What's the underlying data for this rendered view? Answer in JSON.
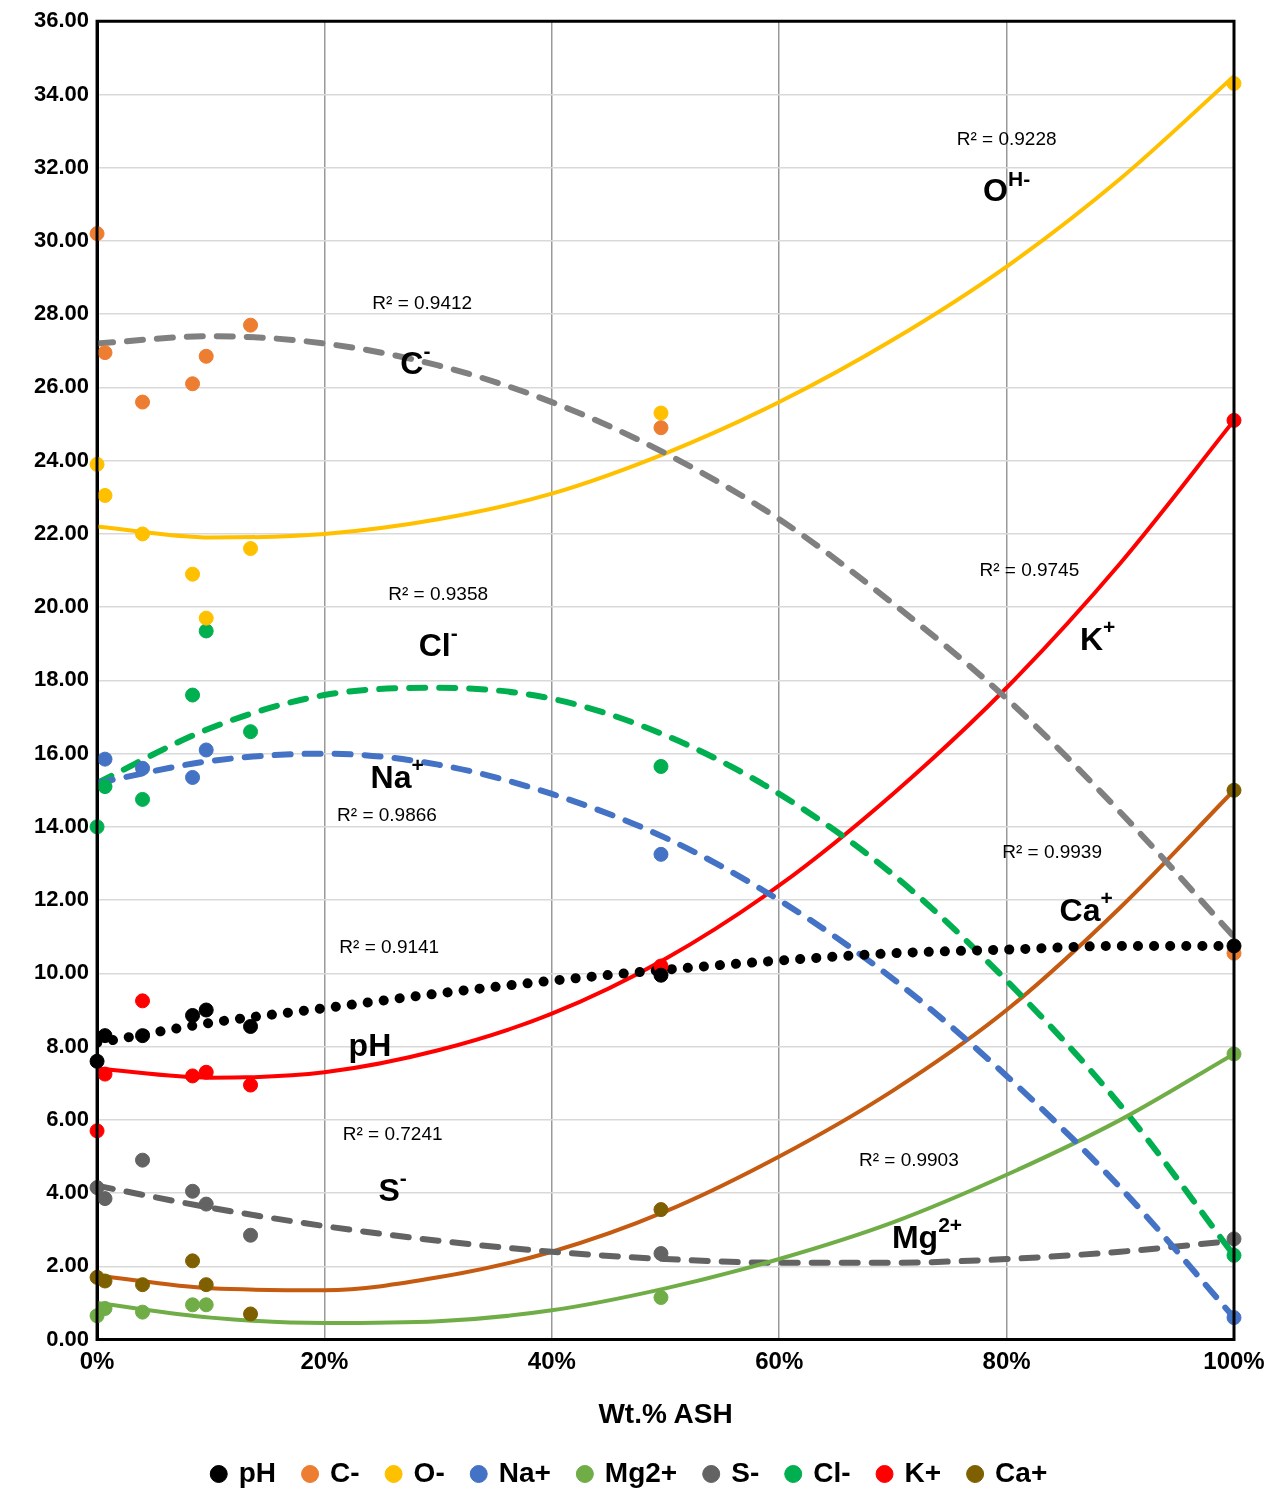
{
  "chart_data": {
    "type": "scatter",
    "xlabel": "Wt.% ASH",
    "marker": "circle",
    "grid": true,
    "legend": "bottom",
    "xlim": [
      0,
      100
    ],
    "xticks": [
      {
        "value": 0,
        "label": "0%"
      },
      {
        "value": 20,
        "label": "20%"
      },
      {
        "value": 40,
        "label": "40%"
      },
      {
        "value": 60,
        "label": "60%"
      },
      {
        "value": 80,
        "label": "80%"
      },
      {
        "value": 100,
        "label": "100%"
      }
    ],
    "ylim": [
      0,
      36
    ],
    "yticks": [
      {
        "value": 0,
        "label": "0.00"
      },
      {
        "value": 2,
        "label": "2.00"
      },
      {
        "value": 4,
        "label": "4.00"
      },
      {
        "value": 6,
        "label": "6.00"
      },
      {
        "value": 8,
        "label": "8.00"
      },
      {
        "value": 10,
        "label": "10.00"
      },
      {
        "value": 12,
        "label": "12.00"
      },
      {
        "value": 14,
        "label": "14.00"
      },
      {
        "value": 16,
        "label": "16.00"
      },
      {
        "value": 18,
        "label": "18.00"
      },
      {
        "value": 20,
        "label": "20.00"
      },
      {
        "value": 22,
        "label": "22.00"
      },
      {
        "value": 24,
        "label": "24.00"
      },
      {
        "value": 26,
        "label": "26.00"
      },
      {
        "value": 28,
        "label": "28.00"
      },
      {
        "value": 30,
        "label": "30.00"
      },
      {
        "value": 32,
        "label": "32.00"
      },
      {
        "value": 34,
        "label": "34.00"
      },
      {
        "value": 36,
        "label": "36.00"
      }
    ],
    "x": [
      0,
      0.7,
      4,
      8.4,
      9.6,
      13.5,
      49.6,
      100
    ],
    "series": [
      {
        "name": "pH",
        "color": "#000000",
        "values": [
          7.6,
          8.3,
          8.3,
          8.85,
          9.0,
          8.55,
          9.95,
          10.75
        ]
      },
      {
        "name": "C-",
        "color": "#ed7d31",
        "values": [
          30.2,
          26.95,
          25.6,
          26.1,
          26.85,
          27.7,
          24.9,
          10.55
        ]
      },
      {
        "name": "O-",
        "color": "#ffc000",
        "values": [
          23.9,
          23.05,
          22.0,
          20.9,
          19.7,
          21.6,
          25.3,
          34.3
        ]
      },
      {
        "name": "Na+",
        "color": "#4472c4",
        "values": [
          null,
          15.85,
          15.6,
          15.35,
          16.1,
          null,
          13.25,
          0.6
        ]
      },
      {
        "name": "Mg2+",
        "color": "#70ad47",
        "values": [
          0.65,
          0.85,
          0.75,
          0.95,
          0.95,
          null,
          1.15,
          7.8
        ]
      },
      {
        "name": "S-",
        "color": "#636363",
        "values": [
          4.15,
          3.85,
          4.9,
          4.05,
          3.7,
          2.85,
          2.35,
          2.75
        ]
      },
      {
        "name": "Cl-",
        "color": "#00b050",
        "values": [
          14.0,
          15.1,
          14.75,
          17.6,
          19.35,
          16.6,
          15.65,
          2.3
        ]
      },
      {
        "name": "K+",
        "color": "#ff0000",
        "values": [
          5.7,
          7.25,
          9.25,
          7.2,
          7.3,
          6.95,
          10.2,
          25.1
        ]
      },
      {
        "name": "Ca+",
        "color": "#7f6000",
        "values": [
          1.7,
          1.6,
          1.5,
          2.15,
          1.5,
          0.7,
          3.55,
          15.0
        ]
      },
      {
        "type": "line",
        "marker": "none",
        "line_style": "dotted",
        "color": "#000000",
        "x": [
          0,
          10,
          20,
          30,
          40,
          50,
          60,
          70,
          80,
          90,
          100
        ],
        "values": [
          8.1,
          8.65,
          9.05,
          9.45,
          9.8,
          10.1,
          10.35,
          10.55,
          10.65,
          10.75,
          10.75
        ]
      },
      {
        "type": "line",
        "marker": "none",
        "line_style": "dashed",
        "color": "#808080",
        "x": [
          0,
          10,
          20,
          30,
          40,
          50,
          60,
          70,
          80,
          90,
          100
        ],
        "values": [
          27.2,
          27.4,
          27.2,
          26.6,
          25.6,
          24.2,
          22.4,
          20.1,
          17.5,
          14.4,
          11.0
        ]
      },
      {
        "type": "line",
        "marker": "none",
        "line_style": "solid",
        "color": "#ffc000",
        "x": [
          0,
          10,
          20,
          30,
          40,
          50,
          60,
          70,
          80,
          90,
          100
        ],
        "values": [
          22.2,
          21.9,
          22.0,
          22.4,
          23.1,
          24.2,
          25.6,
          27.3,
          29.3,
          31.7,
          34.5
        ]
      },
      {
        "type": "line",
        "marker": "none",
        "line_style": "dashed",
        "color": "#4472c4",
        "x": [
          0,
          10,
          20,
          30,
          40,
          50,
          60,
          70,
          80,
          90,
          100
        ],
        "values": [
          15.2,
          15.8,
          16.0,
          15.7,
          14.9,
          13.7,
          12.0,
          9.85,
          7.2,
          4.15,
          0.6
        ]
      },
      {
        "type": "line",
        "marker": "none",
        "line_style": "solid",
        "color": "#70ad47",
        "x": [
          0,
          10,
          20,
          30,
          40,
          50,
          60,
          70,
          80,
          90,
          100
        ],
        "values": [
          1.0,
          0.6,
          0.45,
          0.5,
          0.8,
          1.4,
          2.2,
          3.2,
          4.5,
          6.0,
          7.8
        ]
      },
      {
        "type": "line",
        "marker": "none",
        "line_style": "dashed",
        "color": "#636363",
        "x": [
          0,
          10,
          20,
          30,
          40,
          50,
          60,
          70,
          80,
          90,
          100
        ],
        "values": [
          4.2,
          3.6,
          3.1,
          2.7,
          2.4,
          2.2,
          2.1,
          2.1,
          2.2,
          2.4,
          2.7
        ]
      },
      {
        "type": "line",
        "marker": "none",
        "line_style": "dashed",
        "color": "#00b050",
        "x": [
          0,
          10,
          20,
          30,
          40,
          50,
          60,
          70,
          80,
          90,
          100
        ],
        "values": [
          15.2,
          16.7,
          17.6,
          17.8,
          17.5,
          16.5,
          14.9,
          12.7,
          9.8,
          6.4,
          2.3
        ]
      },
      {
        "type": "line",
        "marker": "none",
        "line_style": "solid",
        "color": "#ff0000",
        "x": [
          0,
          10,
          20,
          30,
          40,
          50,
          60,
          70,
          80,
          90,
          100
        ],
        "values": [
          7.4,
          7.15,
          7.3,
          7.9,
          8.9,
          10.4,
          12.4,
          14.9,
          17.8,
          21.2,
          25.1
        ]
      },
      {
        "type": "line",
        "marker": "none",
        "line_style": "solid",
        "color": "#c55a11",
        "x": [
          0,
          10,
          20,
          30,
          40,
          50,
          60,
          70,
          80,
          90,
          100
        ],
        "values": [
          1.75,
          1.4,
          1.35,
          1.7,
          2.4,
          3.5,
          5.0,
          6.8,
          9.0,
          11.8,
          15.0
        ]
      }
    ],
    "annotations": [
      "R² = 0.9228",
      "O$^{H-}$",
      "R² = 0.9412",
      "C$^{-}$",
      "R² = 0.9745",
      "K$^{+}$",
      "R² = 0.9358",
      "Cl$^{-}$",
      "R² = 0.9866",
      "Na$^{+}$",
      "R² = 0.9939",
      "Ca$^{+}$",
      "R² = 0.9141",
      "pH",
      "R² = 0.7241",
      "S$^{-}$",
      "R² = 0.9903",
      "Mg$^{2+}$"
    ]
  }
}
